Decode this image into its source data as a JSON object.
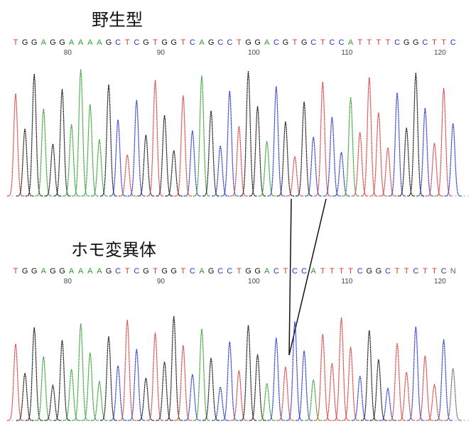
{
  "panels": [
    {
      "title": "野生型",
      "bases": [
        "T",
        "G",
        "G",
        "A",
        "G",
        "G",
        "A",
        "A",
        "A",
        "A",
        "G",
        "C",
        "T",
        "C",
        "G",
        "T",
        "G",
        "G",
        "T",
        "C",
        "A",
        "G",
        "C",
        "C",
        "T",
        "G",
        "G",
        "A",
        "C",
        "G",
        "T",
        "G",
        "C",
        "T",
        "C",
        "C",
        "A",
        "T",
        "T",
        "T",
        "T",
        "C",
        "G",
        "G",
        "C",
        "T",
        "T",
        "C"
      ],
      "positions": [
        "80",
        "90",
        "100",
        "110",
        "120"
      ]
    },
    {
      "title": "ホモ変異体",
      "bases": [
        "T",
        "G",
        "G",
        "A",
        "G",
        "G",
        "A",
        "A",
        "A",
        "A",
        "G",
        "C",
        "T",
        "C",
        "G",
        "T",
        "G",
        "G",
        "T",
        "C",
        "A",
        "G",
        "C",
        "C",
        "T",
        "G",
        "G",
        "A",
        "C",
        "T",
        "C",
        "C",
        "A",
        "T",
        "T",
        "T",
        "T",
        "C",
        "G",
        "G",
        "C",
        "T",
        "T",
        "C",
        "T",
        "T",
        "C",
        "N"
      ],
      "positions": [
        "80",
        "90",
        "100",
        "110",
        "120"
      ]
    }
  ]
}
